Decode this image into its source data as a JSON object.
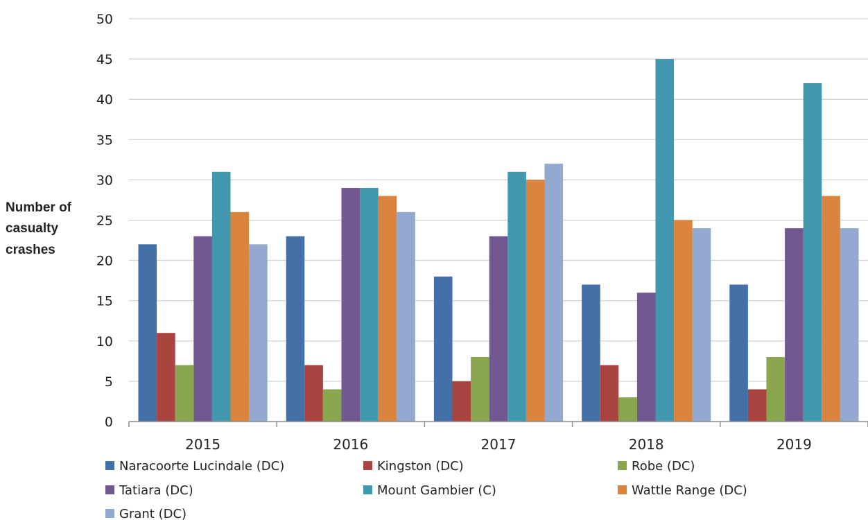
{
  "chart_data": {
    "type": "bar",
    "title": "",
    "xlabel": "",
    "ylabel": "Number of casualty crashes",
    "ylabel_lines": [
      "Number of",
      "casualty",
      "crashes"
    ],
    "ylim": [
      0,
      50
    ],
    "yticks": [
      0,
      5,
      10,
      15,
      20,
      25,
      30,
      35,
      40,
      45,
      50
    ],
    "grid": "horizontal",
    "legend_position": "bottom",
    "categories": [
      "2015",
      "2016",
      "2017",
      "2018",
      "2019"
    ],
    "series": [
      {
        "name": "Naracoorte Lucindale (DC)",
        "color": "#4470a8",
        "values": [
          22,
          23,
          18,
          17,
          17
        ]
      },
      {
        "name": "Kingston (DC)",
        "color": "#aa4441",
        "values": [
          11,
          7,
          5,
          7,
          4
        ]
      },
      {
        "name": "Robe (DC)",
        "color": "#89a54e",
        "values": [
          7,
          4,
          8,
          3,
          8
        ]
      },
      {
        "name": "Tatiara (DC)",
        "color": "#71588f",
        "values": [
          23,
          29,
          23,
          16,
          24
        ]
      },
      {
        "name": "Mount Gambier (C)",
        "color": "#4198af",
        "values": [
          31,
          29,
          31,
          45,
          42
        ]
      },
      {
        "name": "Wattle Range (DC)",
        "color": "#db843d",
        "values": [
          26,
          28,
          30,
          25,
          28
        ]
      },
      {
        "name": "Grant (DC)",
        "color": "#93a9cf",
        "values": [
          22,
          26,
          32,
          24,
          24
        ]
      }
    ]
  }
}
